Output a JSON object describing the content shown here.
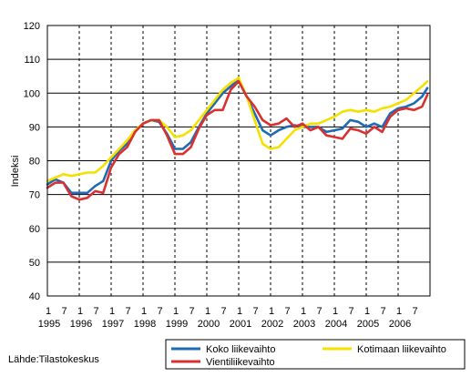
{
  "chart_data": {
    "type": "line",
    "ylabel": "Indeksi",
    "ylim": [
      40,
      120
    ],
    "yticks": [
      40,
      50,
      60,
      70,
      80,
      90,
      100,
      110,
      120
    ],
    "x_start": "1995-01",
    "x_end": "2006-12",
    "month_tick_labels": [
      "1",
      "7"
    ],
    "year_labels": [
      "1995",
      "1996",
      "1997",
      "1998",
      "1999",
      "2000",
      "2001",
      "2002",
      "2003",
      "2004",
      "2005",
      "2006"
    ],
    "grid": "horizontal solid, vertical dashed at each year",
    "legend_position": "bottom-right",
    "source": "Lähde:Tilastokeskus",
    "series": [
      {
        "name": "Koko liikevaihto",
        "color": "#1f6ab4",
        "points": [
          [
            "1995-01",
            73
          ],
          [
            "1995-04",
            74.5
          ],
          [
            "1995-07",
            73.5
          ],
          [
            "1995-10",
            70.5
          ],
          [
            "1996-01",
            70.5
          ],
          [
            "1996-04",
            70.5
          ],
          [
            "1996-07",
            72.5
          ],
          [
            "1996-10",
            74
          ],
          [
            "1997-01",
            80
          ],
          [
            "1997-04",
            83
          ],
          [
            "1997-07",
            85
          ],
          [
            "1997-10",
            89
          ],
          [
            "1998-01",
            91
          ],
          [
            "1998-04",
            92
          ],
          [
            "1998-07",
            91.5
          ],
          [
            "1998-10",
            88
          ],
          [
            "1999-01",
            83.5
          ],
          [
            "1999-04",
            83.5
          ],
          [
            "1999-07",
            85.5
          ],
          [
            "1999-10",
            90
          ],
          [
            "2000-01",
            94
          ],
          [
            "2000-04",
            97
          ],
          [
            "2000-07",
            100
          ],
          [
            "2000-10",
            102
          ],
          [
            "2001-01",
            104
          ],
          [
            "2001-04",
            99
          ],
          [
            "2001-07",
            94
          ],
          [
            "2001-10",
            89
          ],
          [
            "2002-01",
            87.5
          ],
          [
            "2002-04",
            89
          ],
          [
            "2002-07",
            90
          ],
          [
            "2002-10",
            90.5
          ],
          [
            "2003-01",
            90
          ],
          [
            "2003-04",
            90
          ],
          [
            "2003-07",
            90
          ],
          [
            "2003-10",
            88.5
          ],
          [
            "2004-01",
            89
          ],
          [
            "2004-04",
            89.5
          ],
          [
            "2004-07",
            92
          ],
          [
            "2004-10",
            91.5
          ],
          [
            "2005-01",
            90
          ],
          [
            "2005-04",
            91
          ],
          [
            "2005-07",
            90
          ],
          [
            "2005-10",
            94
          ],
          [
            "2006-01",
            95.5
          ],
          [
            "2006-04",
            96
          ],
          [
            "2006-07",
            97
          ],
          [
            "2006-10",
            99
          ],
          [
            "2006-12",
            101.5
          ]
        ]
      },
      {
        "name": "Kotimaan liikevaihto",
        "color": "#f5e000",
        "points": [
          [
            "1995-01",
            74
          ],
          [
            "1995-04",
            75
          ],
          [
            "1995-07",
            76
          ],
          [
            "1995-10",
            75.5
          ],
          [
            "1996-01",
            76
          ],
          [
            "1996-04",
            76.5
          ],
          [
            "1996-07",
            76.5
          ],
          [
            "1996-10",
            78.5
          ],
          [
            "1997-01",
            81
          ],
          [
            "1997-04",
            83.5
          ],
          [
            "1997-07",
            86
          ],
          [
            "1997-10",
            89
          ],
          [
            "1998-01",
            91
          ],
          [
            "1998-04",
            92
          ],
          [
            "1998-07",
            92
          ],
          [
            "1998-10",
            90
          ],
          [
            "1999-01",
            87
          ],
          [
            "1999-04",
            87.5
          ],
          [
            "1999-07",
            89
          ],
          [
            "1999-10",
            92
          ],
          [
            "2000-01",
            95
          ],
          [
            "2000-04",
            98
          ],
          [
            "2000-07",
            101
          ],
          [
            "2000-10",
            103
          ],
          [
            "2001-01",
            104.5
          ],
          [
            "2001-04",
            99
          ],
          [
            "2001-07",
            92
          ],
          [
            "2001-10",
            85
          ],
          [
            "2002-01",
            83.5
          ],
          [
            "2002-04",
            84
          ],
          [
            "2002-07",
            86.5
          ],
          [
            "2002-10",
            89
          ],
          [
            "2003-01",
            90
          ],
          [
            "2003-04",
            91
          ],
          [
            "2003-07",
            91
          ],
          [
            "2003-10",
            92
          ],
          [
            "2004-01",
            93
          ],
          [
            "2004-04",
            94.5
          ],
          [
            "2004-07",
            95
          ],
          [
            "2004-10",
            94.5
          ],
          [
            "2005-01",
            95
          ],
          [
            "2005-04",
            94.5
          ],
          [
            "2005-07",
            95.5
          ],
          [
            "2005-10",
            96
          ],
          [
            "2006-01",
            97
          ],
          [
            "2006-04",
            98
          ],
          [
            "2006-07",
            100
          ],
          [
            "2006-10",
            102
          ],
          [
            "2006-12",
            103.5
          ]
        ]
      },
      {
        "name": "Vientiliikevaihto",
        "color": "#d93030",
        "points": [
          [
            "1995-01",
            72
          ],
          [
            "1995-04",
            73.5
          ],
          [
            "1995-07",
            73.5
          ],
          [
            "1995-10",
            69.5
          ],
          [
            "1996-01",
            68.5
          ],
          [
            "1996-04",
            69
          ],
          [
            "1996-07",
            71
          ],
          [
            "1996-10",
            70.5
          ],
          [
            "1997-01",
            78
          ],
          [
            "1997-04",
            82
          ],
          [
            "1997-07",
            84
          ],
          [
            "1997-10",
            88.5
          ],
          [
            "1998-01",
            91
          ],
          [
            "1998-04",
            92
          ],
          [
            "1998-07",
            92
          ],
          [
            "1998-10",
            87.5
          ],
          [
            "1999-01",
            82
          ],
          [
            "1999-04",
            82
          ],
          [
            "1999-07",
            84
          ],
          [
            "1999-10",
            89.5
          ],
          [
            "2000-01",
            93.5
          ],
          [
            "2000-04",
            95
          ],
          [
            "2000-07",
            95
          ],
          [
            "2000-10",
            101
          ],
          [
            "2001-01",
            103.5
          ],
          [
            "2001-04",
            99
          ],
          [
            "2001-07",
            96
          ],
          [
            "2001-10",
            92
          ],
          [
            "2002-01",
            90.5
          ],
          [
            "2002-04",
            91
          ],
          [
            "2002-07",
            92.5
          ],
          [
            "2002-10",
            90
          ],
          [
            "2003-01",
            91
          ],
          [
            "2003-04",
            89
          ],
          [
            "2003-07",
            90
          ],
          [
            "2003-10",
            87.5
          ],
          [
            "2004-01",
            87
          ],
          [
            "2004-04",
            86.5
          ],
          [
            "2004-07",
            89.5
          ],
          [
            "2004-10",
            89
          ],
          [
            "2005-01",
            88
          ],
          [
            "2005-04",
            90
          ],
          [
            "2005-07",
            88.5
          ],
          [
            "2005-10",
            93
          ],
          [
            "2006-01",
            95
          ],
          [
            "2006-04",
            95.5
          ],
          [
            "2006-07",
            95
          ],
          [
            "2006-10",
            96
          ],
          [
            "2006-12",
            99.5
          ]
        ]
      }
    ]
  }
}
